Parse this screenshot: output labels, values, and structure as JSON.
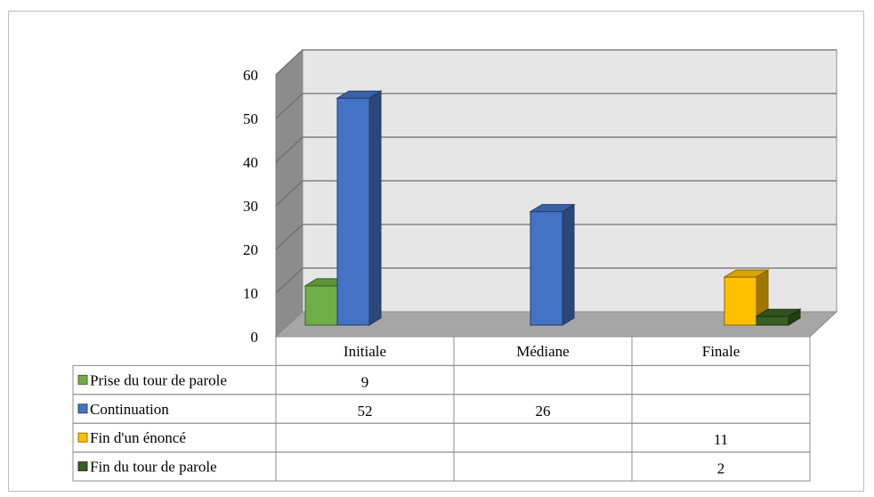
{
  "chart_data": {
    "type": "bar",
    "categories": [
      "Initiale",
      "Médiane",
      "Finale"
    ],
    "series": [
      {
        "name": "Prise du tour de parole",
        "values": [
          9,
          null,
          null
        ],
        "color": "#70AD47"
      },
      {
        "name": "Continuation",
        "values": [
          52,
          26,
          null
        ],
        "color": "#4472C4"
      },
      {
        "name": "Fin d'un énoncé",
        "values": [
          null,
          null,
          11
        ],
        "color": "#FFC000"
      },
      {
        "name": "Fin du tour de parole",
        "values": [
          null,
          null,
          2
        ],
        "color": "#376023"
      }
    ],
    "yticks": [
      "0",
      "10",
      "20",
      "30",
      "40",
      "50",
      "60"
    ],
    "ylim": [
      0,
      60
    ],
    "grid": true,
    "legend": "data-table",
    "style": "3d-column"
  }
}
